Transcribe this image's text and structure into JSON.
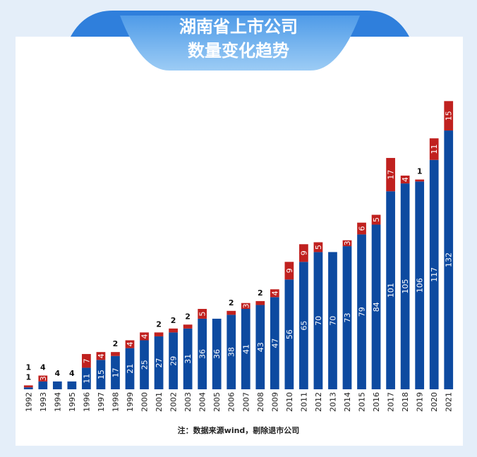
{
  "chart_data": {
    "type": "stacked_bar",
    "title": [
      "湖南省上市公司",
      "数量变化趋势"
    ],
    "note": "注：数据来源wind，剔除退市公司",
    "categories": [
      "1992",
      "1993",
      "1994",
      "1995",
      "1996",
      "1997",
      "1998",
      "1999",
      "2000",
      "2001",
      "2002",
      "2003",
      "2004",
      "2005",
      "2006",
      "2007",
      "2008",
      "2009",
      "2010",
      "2011",
      "2012",
      "2013",
      "2014",
      "2015",
      "2016",
      "2017",
      "2018",
      "2019",
      "2020",
      "2021"
    ],
    "series": [
      {
        "color": "#0d4aa0",
        "values": [
          1,
          4,
          4,
          4,
          11,
          15,
          17,
          21,
          25,
          27,
          29,
          31,
          36,
          36,
          38,
          41,
          43,
          47,
          56,
          65,
          70,
          70,
          73,
          79,
          84,
          101,
          105,
          106,
          117,
          132
        ]
      },
      {
        "color": "#c0211f",
        "values": [
          1,
          3,
          0,
          0,
          7,
          4,
          2,
          4,
          4,
          2,
          2,
          2,
          5,
          0,
          2,
          3,
          2,
          4,
          9,
          9,
          5,
          0,
          3,
          6,
          5,
          17,
          4,
          1,
          11,
          15
        ]
      }
    ],
    "ylim": [
      0,
      150
    ]
  }
}
